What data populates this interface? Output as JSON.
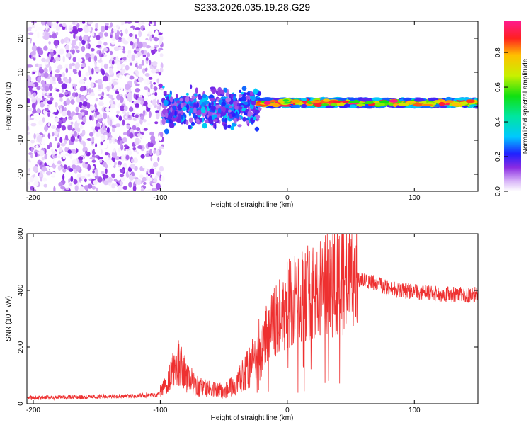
{
  "title": "S233.2026.035.19.28.G29",
  "chart_data": [
    {
      "type": "heatmap",
      "name": "spectrogram",
      "xlabel": "Height of straight line (km)",
      "ylabel": "Frequency (Hz)",
      "xlim": [
        -205,
        150
      ],
      "ylim": [
        -25,
        25
      ],
      "xticks": [
        -200,
        -100,
        0,
        100
      ],
      "yticks": [
        -20,
        -10,
        0,
        10,
        20
      ],
      "regions": [
        {
          "x_range": [
            -205,
            -98
          ],
          "description": "sparse low amplitude noise",
          "amplitude_range": [
            0.0,
            0.15
          ],
          "freq_range": [
            -25,
            25
          ]
        },
        {
          "x_range": [
            -98,
            -22
          ],
          "description": "scattered mid amplitude",
          "amplitude_range": [
            0.1,
            0.35
          ],
          "freq_range": [
            -8,
            7
          ]
        },
        {
          "x_range": [
            -22,
            150
          ],
          "description": "narrow band carrier",
          "amplitude_range": [
            0.5,
            1.0
          ],
          "freq_range": [
            -1,
            2
          ],
          "center_hz": 1
        }
      ],
      "colorbar": {
        "label": "Normalized spectral amplitude",
        "ticks": [
          "0.0",
          "0.2",
          "0.4",
          "0.6",
          "0.8"
        ],
        "range": [
          0,
          0.98
        ]
      }
    },
    {
      "type": "line",
      "name": "snr",
      "xlabel": "Height of straight line (km)",
      "ylabel": "SNR (10 * v/v)",
      "xlim": [
        -205,
        150
      ],
      "ylim": [
        0,
        600
      ],
      "xticks": [
        -200,
        -100,
        0,
        100
      ],
      "yticks": [
        0,
        200,
        400,
        600
      ],
      "color": "#ee3030",
      "series": [
        {
          "name": "SNR",
          "x": [
            -205,
            -180,
            -150,
            -120,
            -102,
            -95,
            -90,
            -85,
            -80,
            -70,
            -60,
            -50,
            -40,
            -30,
            -25,
            -20,
            -15,
            -10,
            -5,
            0,
            10,
            20,
            30,
            40,
            50,
            60,
            70,
            80,
            90,
            100,
            110,
            120,
            130,
            140,
            150
          ],
          "y": [
            20,
            22,
            25,
            28,
            30,
            70,
            120,
            150,
            100,
            60,
            50,
            45,
            70,
            130,
            170,
            210,
            260,
            300,
            330,
            350,
            375,
            395,
            420,
            440,
            440,
            435,
            425,
            405,
            400,
            395,
            390,
            388,
            385,
            384,
            385
          ]
        }
      ]
    }
  ]
}
